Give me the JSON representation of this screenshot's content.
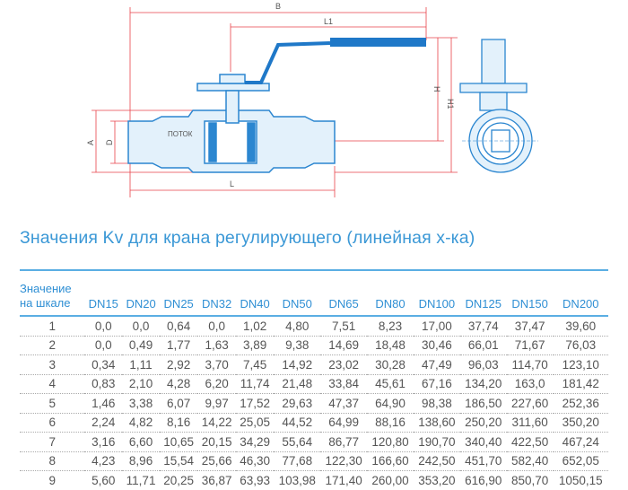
{
  "drawing": {
    "labels": {
      "B": "B",
      "L1": "L1",
      "H": "H",
      "H1": "H1",
      "A": "A",
      "D": "D",
      "L": "L",
      "flow": "ПОТОК"
    },
    "colors": {
      "body": "#2b86d0",
      "dimension": "#e8424a",
      "handle": "#1f78c8"
    }
  },
  "title": "Значения Kv для крана регулирующего (линейная х-ка)",
  "table": {
    "header_first": [
      "Значение",
      "на шкале"
    ],
    "columns": [
      "DN15",
      "DN20",
      "DN25",
      "DN32",
      "DN40",
      "DN50",
      "DN65",
      "DN80",
      "DN100",
      "DN125",
      "DN150",
      "DN200"
    ],
    "rows": [
      [
        "1",
        "0,0",
        "0,0",
        "0,64",
        "0,0",
        "1,02",
        "4,80",
        "7,51",
        "8,23",
        "17,00",
        "37,74",
        "37,47",
        "39,60"
      ],
      [
        "2",
        "0,0",
        "0,49",
        "1,77",
        "1,63",
        "3,89",
        "9,38",
        "14,69",
        "18,48",
        "30,46",
        "66,01",
        "71,67",
        "76,03"
      ],
      [
        "3",
        "0,34",
        "1,11",
        "2,92",
        "3,70",
        "7,45",
        "14,92",
        "23,02",
        "30,28",
        "47,49",
        "96,03",
        "114,70",
        "123,10"
      ],
      [
        "4",
        "0,83",
        "2,10",
        "4,28",
        "6,20",
        "11,74",
        "21,48",
        "33,84",
        "45,61",
        "67,16",
        "134,20",
        "163,0",
        "181,42"
      ],
      [
        "5",
        "1,46",
        "3,38",
        "6,07",
        "9,97",
        "17,52",
        "29,63",
        "47,37",
        "64,90",
        "98,38",
        "186,50",
        "227,60",
        "252,36"
      ],
      [
        "6",
        "2,24",
        "4,82",
        "8,16",
        "14,22",
        "25,05",
        "44,52",
        "64,99",
        "88,16",
        "138,60",
        "250,20",
        "311,60",
        "350,20"
      ],
      [
        "7",
        "3,16",
        "6,60",
        "10,65",
        "20,15",
        "34,29",
        "55,64",
        "86,77",
        "120,80",
        "190,70",
        "340,40",
        "422,50",
        "467,24"
      ],
      [
        "8",
        "4,23",
        "8,96",
        "15,54",
        "25,66",
        "46,30",
        "77,68",
        "122,30",
        "166,60",
        "242,50",
        "451,70",
        "582,40",
        "652,05"
      ],
      [
        "9",
        "5,60",
        "11,71",
        "20,25",
        "36,87",
        "63,93",
        "103,98",
        "171,40",
        "260,00",
        "353,20",
        "616,90",
        "850,70",
        "1050,15"
      ]
    ]
  }
}
